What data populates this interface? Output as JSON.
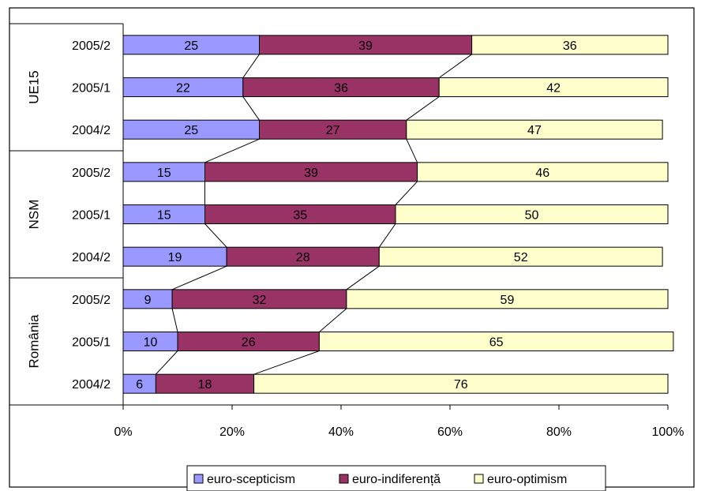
{
  "chart_data": {
    "type": "bar",
    "orientation": "horizontal",
    "stacked": "100%",
    "groups": [
      {
        "name": "UE15",
        "categories": [
          "2005/2",
          "2005/1",
          "2004/2"
        ]
      },
      {
        "name": "NSM",
        "categories": [
          "2005/2",
          "2005/1",
          "2004/2"
        ]
      },
      {
        "name": "România",
        "categories": [
          "2005/2",
          "2005/1",
          "2004/2"
        ]
      }
    ],
    "series": [
      {
        "name": "euro-scepticism",
        "color": "#9999ff",
        "values": [
          25,
          22,
          25,
          15,
          15,
          19,
          9,
          10,
          6
        ]
      },
      {
        "name": "euro-indiferență",
        "color": "#993366",
        "values": [
          39,
          36,
          27,
          39,
          35,
          28,
          32,
          26,
          18
        ]
      },
      {
        "name": "euro-optimism",
        "color": "#ffffcc",
        "values": [
          36,
          42,
          47,
          46,
          50,
          52,
          59,
          65,
          76
        ]
      }
    ],
    "xlim": [
      0,
      100
    ],
    "x_ticks": [
      "0%",
      "20%",
      "40%",
      "60%",
      "80%",
      "100%"
    ],
    "series_lines": true,
    "grid": false,
    "legend_position": "bottom"
  }
}
